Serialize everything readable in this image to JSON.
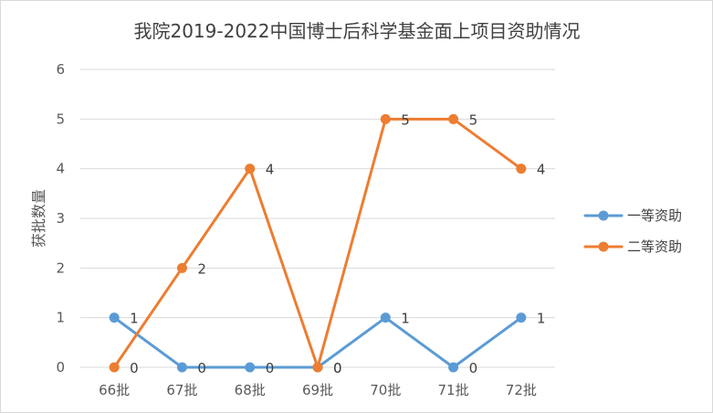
{
  "chart_data": {
    "type": "line",
    "title": "我院2019-2022中国博士后科学基金面上项目资助情况",
    "xlabel": "",
    "ylabel": "获批数量",
    "categories": [
      "66批",
      "67批",
      "68批",
      "69批",
      "70批",
      "71批",
      "72批"
    ],
    "ylim": [
      0,
      6
    ],
    "yticks": [
      "0",
      "1",
      "2",
      "3",
      "4",
      "5",
      "6"
    ],
    "grid": true,
    "legend_position": "right",
    "data_labels": true,
    "series": [
      {
        "name": "一等资助",
        "color": "#5b9bd5",
        "values": [
          1,
          0,
          0,
          0,
          1,
          0,
          1
        ]
      },
      {
        "name": "二等资助",
        "color": "#ed7d31",
        "values": [
          0,
          2,
          4,
          0,
          5,
          5,
          4
        ]
      }
    ]
  }
}
